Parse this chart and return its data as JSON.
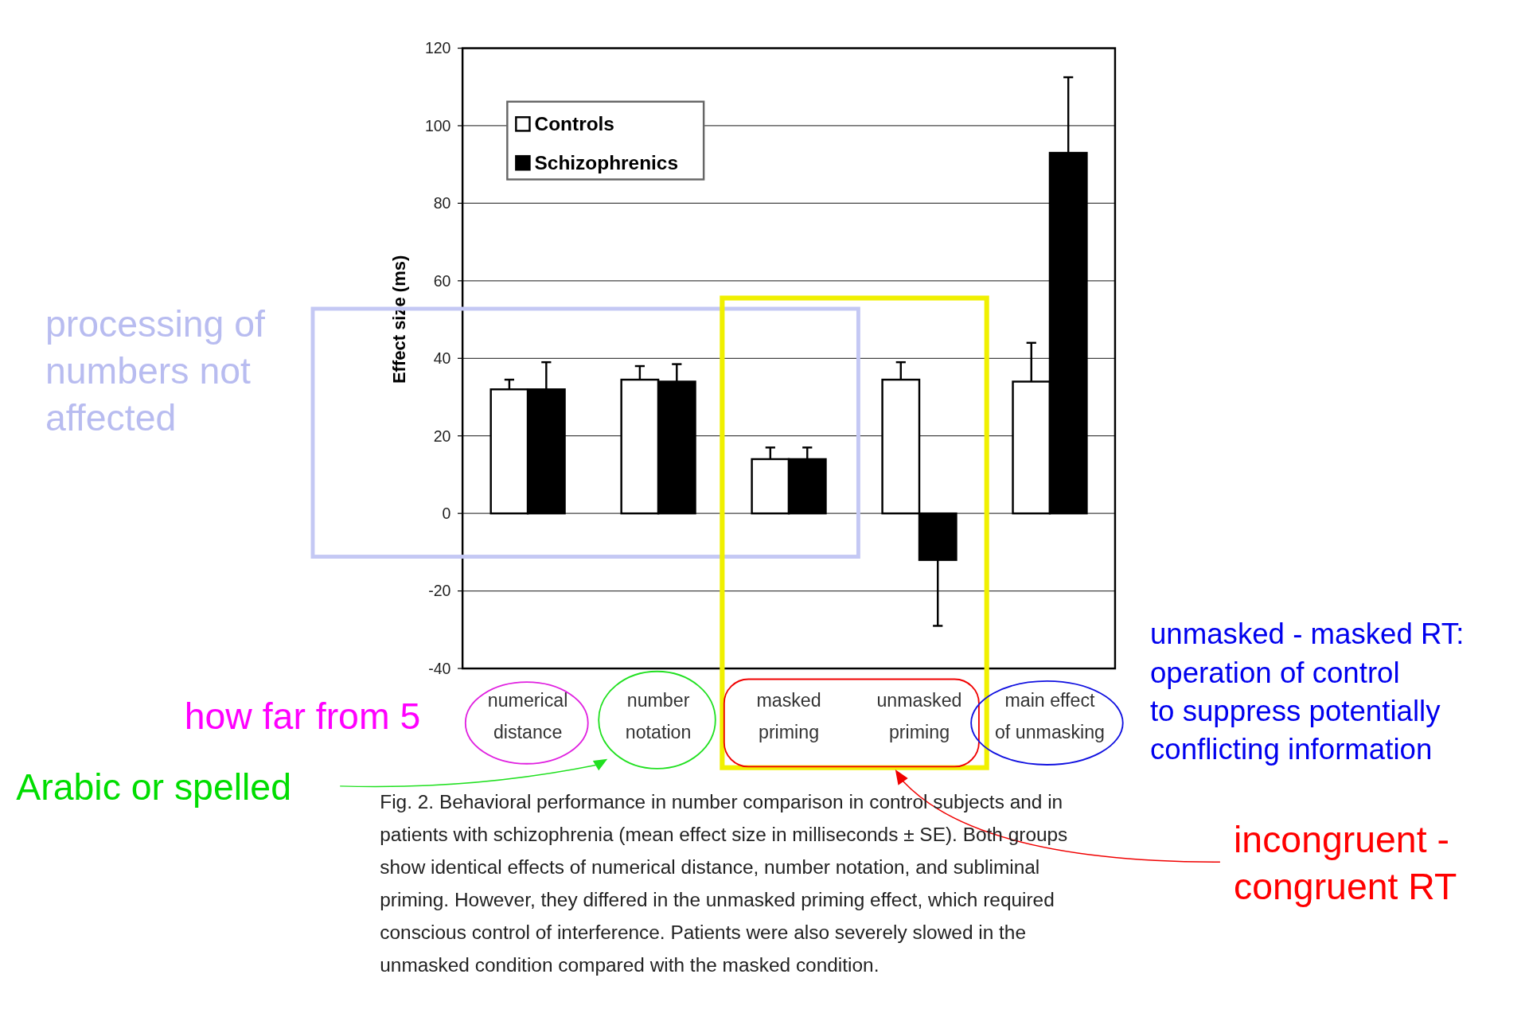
{
  "chart_data": {
    "type": "bar",
    "ylabel": "Effect size (ms)",
    "categories": [
      "numerical distance",
      "number notation",
      "masked priming",
      "unmasked priming",
      "main effect of unmasking"
    ],
    "series": [
      {
        "name": "Controls",
        "color": "#ffffff",
        "values": [
          32,
          34.5,
          14,
          34.5,
          34
        ],
        "errors": [
          [
            32,
            34.5
          ],
          [
            34.5,
            38
          ],
          [
            14,
            17
          ],
          [
            34.5,
            39
          ],
          [
            34,
            44
          ]
        ]
      },
      {
        "name": "Schizophrenics",
        "color": "#000000",
        "values": [
          32,
          34,
          14,
          -12,
          93
        ],
        "errors": [
          [
            32,
            39
          ],
          [
            34,
            38.5
          ],
          [
            14,
            17
          ],
          [
            -29,
            -12
          ],
          [
            93,
            112.5
          ]
        ]
      }
    ],
    "ylim": [
      -40,
      120
    ],
    "yticks": [
      -40,
      -20,
      0,
      20,
      40,
      60,
      80,
      100,
      120
    ],
    "grid": "y",
    "legend": "top left",
    "annotations": [
      "Fig. 2. Behavioral performance in number comparison in control subjects and in patients with schizophrenia (mean effect size in milliseconds ± SE). Both groups show identical effects of numerical distance, number notation, and subliminal priming. However, they differed in the unmasked priming effect, which required conscious control of interference. Patients were also severely slowed in the unmasked condition compared with the masked condition.",
      "processing of\nnumbers not\naffected",
      "how far from 5",
      "Arabic or spelled",
      "incongruent -\ncongruent RT",
      "unmasked - masked RT:\noperation of control\nto suppress potentially\nconflicting information"
    ]
  }
}
